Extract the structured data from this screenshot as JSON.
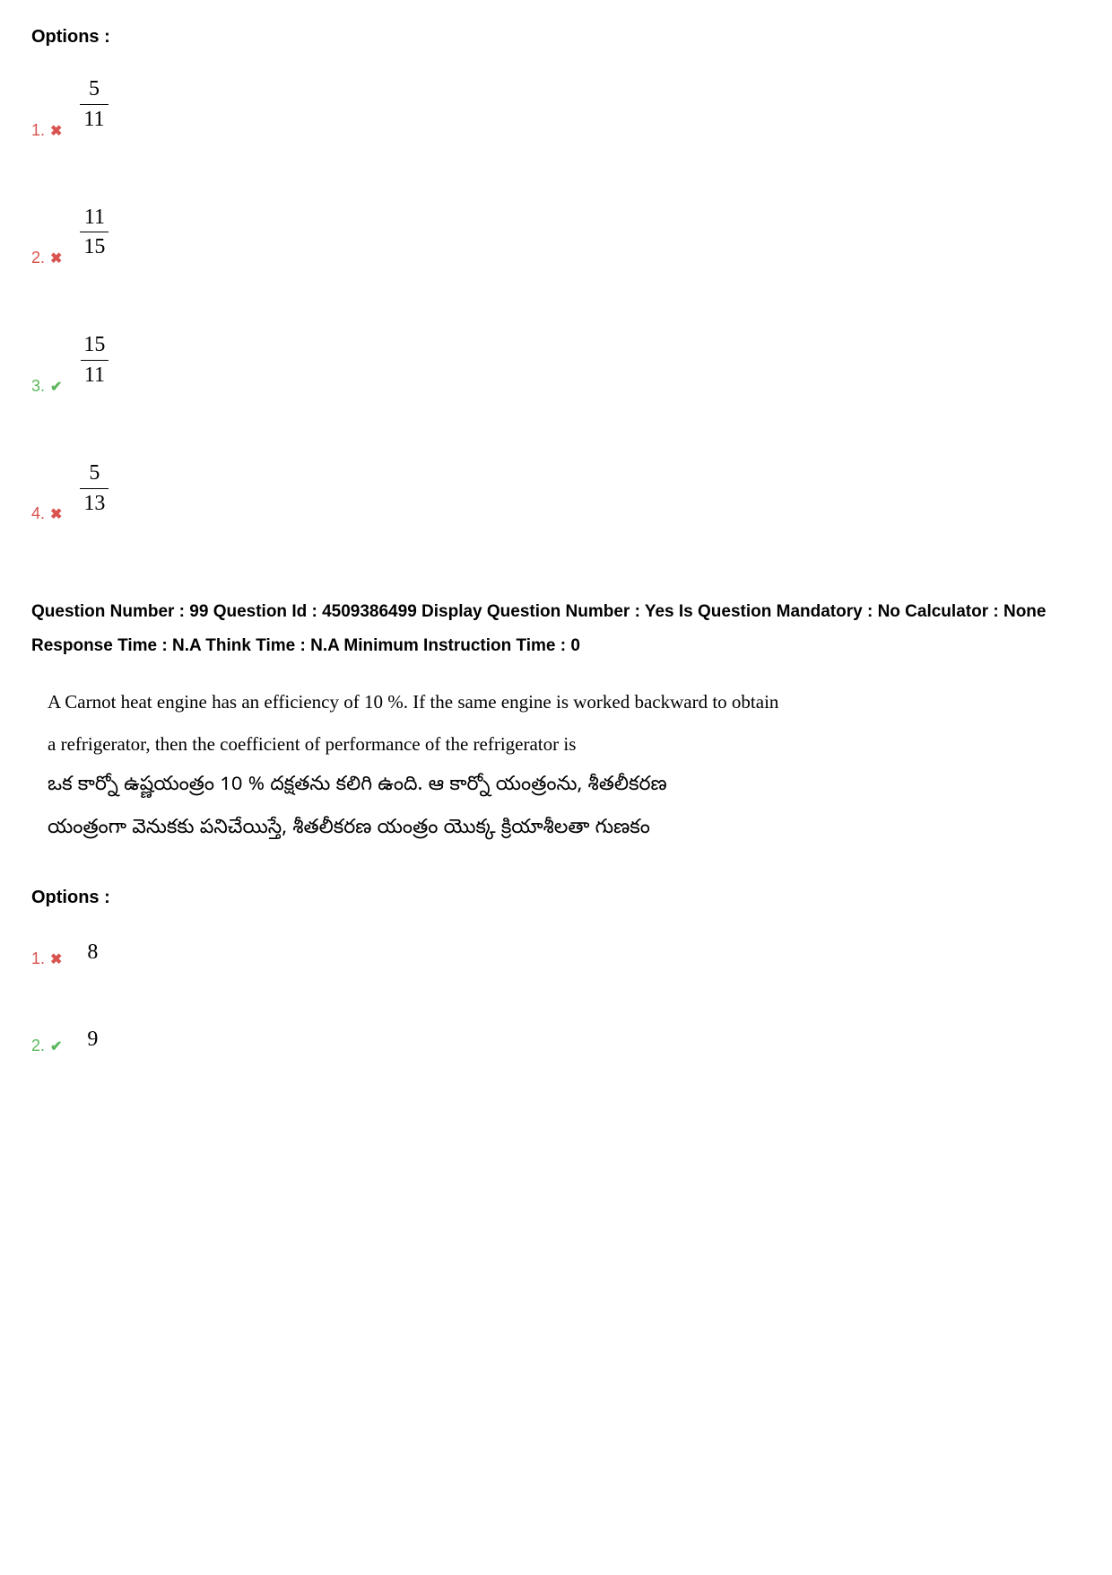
{
  "options1": {
    "header": "Options :",
    "items": [
      {
        "num": "1.",
        "status": "wrong",
        "numerator": "5",
        "denominator": "11"
      },
      {
        "num": "2.",
        "status": "wrong",
        "numerator": "11",
        "denominator": "15"
      },
      {
        "num": "3.",
        "status": "correct",
        "numerator": "15",
        "denominator": "11"
      },
      {
        "num": "4.",
        "status": "wrong",
        "numerator": "5",
        "denominator": "13"
      }
    ]
  },
  "question": {
    "meta": "Question Number : 99 Question Id : 4509386499 Display Question Number : Yes Is Question Mandatory : No Calculator : None Response Time : N.A Think Time : N.A Minimum Instruction Time : 0",
    "english_line1": "A Carnot heat engine has an efficiency of 10 %. If the same engine is worked backward to obtain",
    "english_line2": "a refrigerator, then the coefficient of performance of the refrigerator is",
    "telugu_line1": "ఒక కార్నో ఉష్ణయంత్రం 10 % దక్షతను కలిగి ఉంది. ఆ కార్నో యంత్రంను, శీతలీకరణ",
    "telugu_line2": "యంత్రంగా వెనుకకు పనిచేయిస్తే, శీతలీకరణ యంత్రం యొక్క క్రియాశీలతా గుణకం"
  },
  "options2": {
    "header": "Options :",
    "items": [
      {
        "num": "1.",
        "status": "wrong",
        "value": "8"
      },
      {
        "num": "2.",
        "status": "correct",
        "value": "9"
      }
    ]
  },
  "colors": {
    "wrong": "#d9534f",
    "correct": "#5cb85c",
    "text": "#000000",
    "background": "#ffffff"
  }
}
